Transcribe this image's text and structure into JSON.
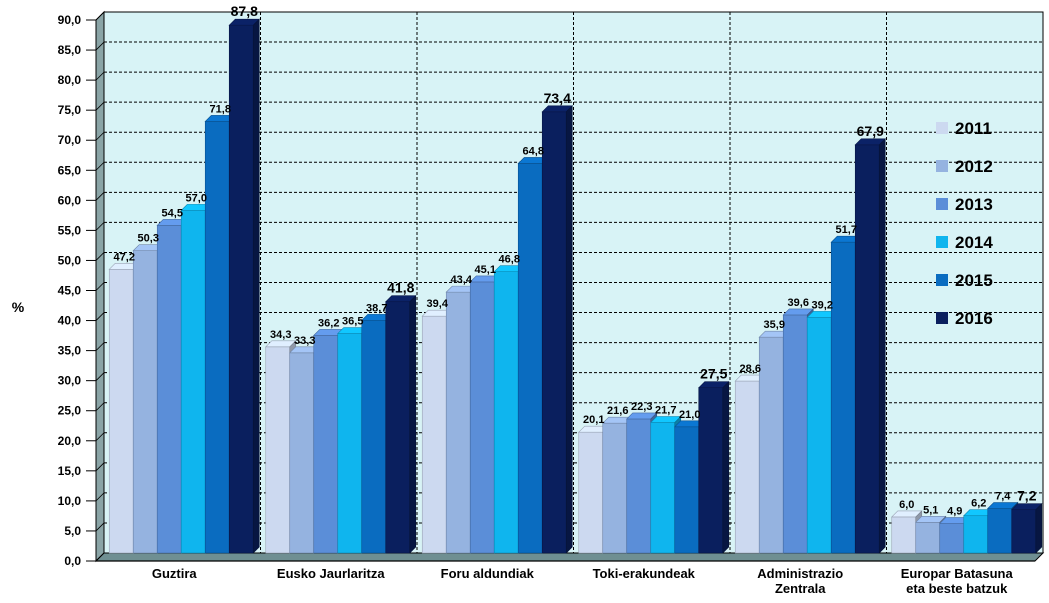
{
  "chart_data": {
    "type": "bar",
    "ylabel": "%",
    "ylim": [
      0,
      90
    ],
    "yticks": [
      "0,0",
      "5,0",
      "10,0",
      "15,0",
      "20,0",
      "25,0",
      "30,0",
      "35,0",
      "40,0",
      "45,0",
      "50,0",
      "55,0",
      "60,0",
      "65,0",
      "70,0",
      "75,0",
      "80,0",
      "85,0",
      "90,0"
    ],
    "categories": [
      [
        "Guztira"
      ],
      [
        "Eusko Jaurlaritza"
      ],
      [
        "Foru aldundiak"
      ],
      [
        "Toki-erakundeak"
      ],
      [
        "Administrazio",
        "Zentrala"
      ],
      [
        "Europar Batasuna",
        "eta beste batzuk"
      ]
    ],
    "series": [
      {
        "name": "2011",
        "color": "#ccd9f0",
        "values": [
          47.2,
          34.3,
          39.4,
          20.1,
          28.6,
          6.0
        ],
        "labels": [
          "47,2",
          "34,3",
          "39,4",
          "20,1",
          "28,6",
          "6,0"
        ]
      },
      {
        "name": "2012",
        "color": "#95b3e0",
        "values": [
          50.3,
          33.3,
          43.4,
          21.6,
          35.9,
          5.1
        ],
        "labels": [
          "50,3",
          "33,3",
          "43,4",
          "21,6",
          "35,9",
          "5,1"
        ]
      },
      {
        "name": "2013",
        "color": "#5b8ed8",
        "values": [
          54.5,
          36.2,
          45.1,
          22.3,
          39.6,
          4.9
        ],
        "labels": [
          "54,5",
          "36,2",
          "45,1",
          "22,3",
          "39,6",
          "4,9"
        ]
      },
      {
        "name": "2014",
        "color": "#0fb5ee",
        "values": [
          57.0,
          36.5,
          46.8,
          21.7,
          39.2,
          6.2
        ],
        "labels": [
          "57,0",
          "36,5",
          "46,8",
          "21,7",
          "39,2",
          "6,2"
        ]
      },
      {
        "name": "2015",
        "color": "#0a6cc0",
        "values": [
          71.8,
          38.7,
          64.8,
          21.0,
          51.7,
          7.4
        ],
        "labels": [
          "71,8",
          "38,7",
          "64,8",
          "21,0",
          "51,7",
          "7,4"
        ]
      },
      {
        "name": "2016",
        "color": "#0a1f5e",
        "values": [
          87.8,
          41.8,
          73.4,
          27.5,
          67.9,
          7.2
        ],
        "labels": [
          "87,8",
          "41,8",
          "73,4",
          "27,5",
          "67,9",
          "7,2"
        ]
      }
    ],
    "legend_position": "right",
    "grid": true,
    "plot_background": "#d8f3f6",
    "wall_color": "#8aa4a6"
  }
}
